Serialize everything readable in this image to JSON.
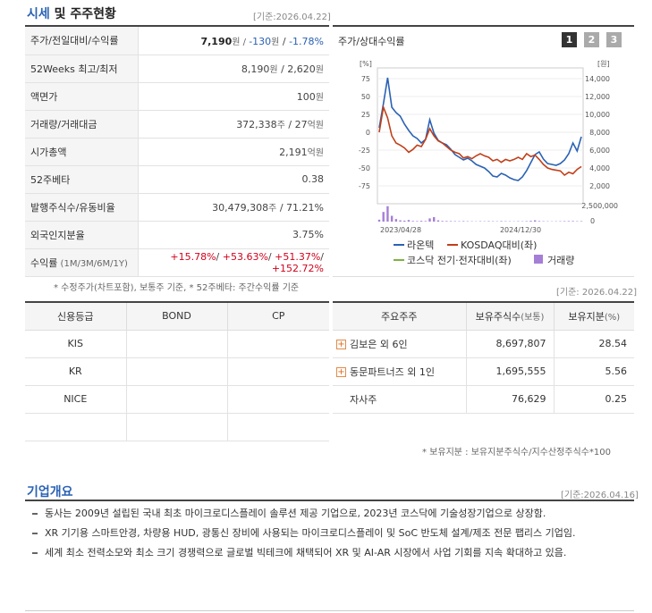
{
  "section1": {
    "title_a": "시세",
    "title_b": " 및 주주현황",
    "date": "[기준:2026.04.22]"
  },
  "price_table": [
    {
      "label": "주가/전일대비/수익률",
      "parts": [
        {
          "t": "7,190",
          "c": "bold"
        },
        {
          "t": "원 / ",
          "c": "small"
        },
        {
          "t": "-130",
          "c": "blue"
        },
        {
          "t": "원",
          "c": "blue small"
        },
        {
          "t": " / ",
          "c": ""
        },
        {
          "t": "-1.78%",
          "c": "blue"
        }
      ]
    },
    {
      "label": "52Weeks 최고/최저",
      "parts": [
        {
          "t": "8,190",
          "c": ""
        },
        {
          "t": "원",
          "c": "small"
        },
        {
          "t": " / 2,620",
          "c": ""
        },
        {
          "t": "원",
          "c": "small"
        }
      ]
    },
    {
      "label": "액면가",
      "parts": [
        {
          "t": "100",
          "c": ""
        },
        {
          "t": "원",
          "c": "small"
        }
      ]
    },
    {
      "label": "거래량/거래대금",
      "parts": [
        {
          "t": "372,338",
          "c": ""
        },
        {
          "t": "주",
          "c": "small"
        },
        {
          "t": " / 27",
          "c": ""
        },
        {
          "t": "억원",
          "c": "small"
        }
      ]
    },
    {
      "label": "시가총액",
      "parts": [
        {
          "t": "2,191",
          "c": ""
        },
        {
          "t": "억원",
          "c": "small"
        }
      ]
    },
    {
      "label": "52주베타",
      "parts": [
        {
          "t": "0.38",
          "c": ""
        }
      ]
    },
    {
      "label": "발행주식수/유동비율",
      "parts": [
        {
          "t": "30,479,308",
          "c": ""
        },
        {
          "t": "주",
          "c": "small"
        },
        {
          "t": " / 71.21%",
          "c": ""
        }
      ]
    },
    {
      "label": "외국인지분율",
      "parts": [
        {
          "t": "3.75%",
          "c": ""
        }
      ]
    },
    {
      "label": "수익률",
      "label_small": " (1M/3M/6M/1Y)",
      "parts": [
        {
          "t": "+15.78%",
          "c": "red"
        },
        {
          "t": "/ ",
          "c": ""
        },
        {
          "t": "+53.63%",
          "c": "red"
        },
        {
          "t": "/ ",
          "c": ""
        },
        {
          "t": "+51.37%",
          "c": "red"
        },
        {
          "t": "/ ",
          "c": ""
        },
        {
          "t": "+152.72%",
          "c": "red"
        }
      ]
    }
  ],
  "price_note": "* 수정주가(차트포함), 보통주 기준, * 52주베타: 주간수익률 기준",
  "chart": {
    "title": "주가/상대수익률",
    "tabs": [
      "1",
      "2",
      "3"
    ],
    "left_unit": "[%]",
    "right_unit": "[원]",
    "left_ticks": [
      "75",
      "50",
      "25",
      "0",
      "-25",
      "-50",
      "-75"
    ],
    "right_ticks": [
      "14,000",
      "12,000",
      "10,000",
      "8,000",
      "6,000",
      "4,000",
      "2,000"
    ],
    "vol_tick_top": "2,500,000",
    "vol_tick_zero": "0",
    "x_labels": [
      "2023/04/28",
      "2024/12/30"
    ],
    "legend": [
      {
        "name": "라온텍",
        "color": "#2a62b4",
        "kind": "line"
      },
      {
        "name": "KOSDAQ대비(좌)",
        "color": "#c0401a",
        "kind": "line"
      },
      {
        "name": "코스닥 전기·전자대비(좌)",
        "color": "#7cb342",
        "kind": "line"
      },
      {
        "name": "거래량",
        "color": "#a57fd6",
        "kind": "box"
      }
    ]
  },
  "chart_data": {
    "type": "line",
    "left_axis": {
      "unit": "%",
      "range": [
        -75,
        75
      ]
    },
    "right_axis": {
      "unit": "원",
      "range": [
        2000,
        14000
      ]
    },
    "series": [
      {
        "name": "라온텍",
        "axis": "right",
        "color": "#2a62b4",
        "values": [
          8500,
          11200,
          14100,
          10800,
          10200,
          9800,
          8900,
          8200,
          7600,
          7300,
          6800,
          7200,
          9400,
          7900,
          7100,
          6800,
          6600,
          6100,
          5500,
          5200,
          4900,
          5100,
          4800,
          4400,
          4200,
          4000,
          3600,
          3100,
          3000,
          3400,
          3200,
          2900,
          2700,
          2600,
          3000,
          3700,
          4600,
          5500,
          5800,
          5000,
          4500,
          4400,
          4300,
          4500,
          4900,
          5600,
          6800,
          5900,
          7500
        ]
      },
      {
        "name": "KOSDAQ대비(좌)",
        "axis": "left",
        "color": "#c0401a",
        "values": [
          0,
          35,
          20,
          -5,
          -15,
          -18,
          -22,
          -28,
          -24,
          -18,
          -20,
          -10,
          5,
          -5,
          -12,
          -15,
          -20,
          -25,
          -28,
          -30,
          -36,
          -34,
          -37,
          -33,
          -30,
          -33,
          -35,
          -40,
          -38,
          -42,
          -38,
          -40,
          -38,
          -35,
          -38,
          -30,
          -34,
          -32,
          -38,
          -45,
          -50,
          -52,
          -53,
          -54,
          -60,
          -56,
          -58,
          -52,
          -48
        ]
      },
      {
        "name": "코스닥 전기·전자대비(좌)",
        "axis": "left",
        "color": "#7cb342",
        "values": []
      }
    ],
    "volume": {
      "name": "거래량",
      "color": "#a57fd6",
      "values": [
        300000,
        1500000,
        2400000,
        900000,
        400000,
        200000,
        150000,
        250000,
        100000,
        80000,
        120000,
        90000,
        500000,
        700000,
        200000,
        100000,
        90000,
        80000,
        70000,
        60000,
        80000,
        60000,
        50000,
        40000,
        60000,
        50000,
        70000,
        60000,
        50000,
        80000,
        60000,
        50000,
        40000,
        60000,
        50000,
        70000,
        120000,
        200000,
        90000,
        60000,
        50000,
        40000,
        50000,
        60000,
        70000,
        80000,
        90000,
        60000,
        70000
      ],
      "range": [
        0,
        2500000
      ]
    },
    "x_labels": [
      "2023/04/28",
      "2024/12/30"
    ]
  },
  "credit": {
    "headers": [
      "신용등급",
      "BOND",
      "CP"
    ],
    "rows": [
      [
        "KIS",
        "",
        ""
      ],
      [
        "KR",
        "",
        ""
      ],
      [
        "NICE",
        "",
        ""
      ],
      [
        "",
        "",
        ""
      ]
    ]
  },
  "holders": {
    "date": "[기준: 2026.04.22]",
    "headers": [
      "주요주주",
      "보유주식수",
      "(보통)",
      "보유지분",
      "(%)"
    ],
    "rows": [
      {
        "plus": true,
        "name": "김보은 외 6인",
        "shares": "8,697,807",
        "pct": "28.54"
      },
      {
        "plus": true,
        "name": "동문파트너즈 외 1인",
        "shares": "1,695,555",
        "pct": "5.56"
      },
      {
        "plus": false,
        "name": "자사주",
        "shares": "76,629",
        "pct": "0.25"
      }
    ],
    "note": "* 보유지분 : 보유지분주식수/지수산정주식수*100"
  },
  "overview": {
    "title": "기업개요",
    "date": "[기준:2026.04.16]",
    "items": [
      "동사는 2009년 설립된 국내 최초 마이크로디스플레이 솔루션 제공 기업으로, 2023년 코스닥에 기술성장기업으로 상장함.",
      "XR 기기용 스마트안경, 차량용 HUD, 광통신 장비에 사용되는 마이크로디스플레이 및 SoC 반도체 설계/제조 전문 팹리스 기업임.",
      "세계 최소 전력소모와 최소 크기 경쟁력으로 글로벌 빅테크에 채택되어 XR 및 AI-AR 시장에서 사업 기회를 지속 확대하고 있음."
    ]
  },
  "colors": {
    "accent": "#2a62b4",
    "up": "#d0021b",
    "down": "#2a62b4",
    "tab_active": "#333333",
    "tab_inactive": "#aaaaaa"
  }
}
